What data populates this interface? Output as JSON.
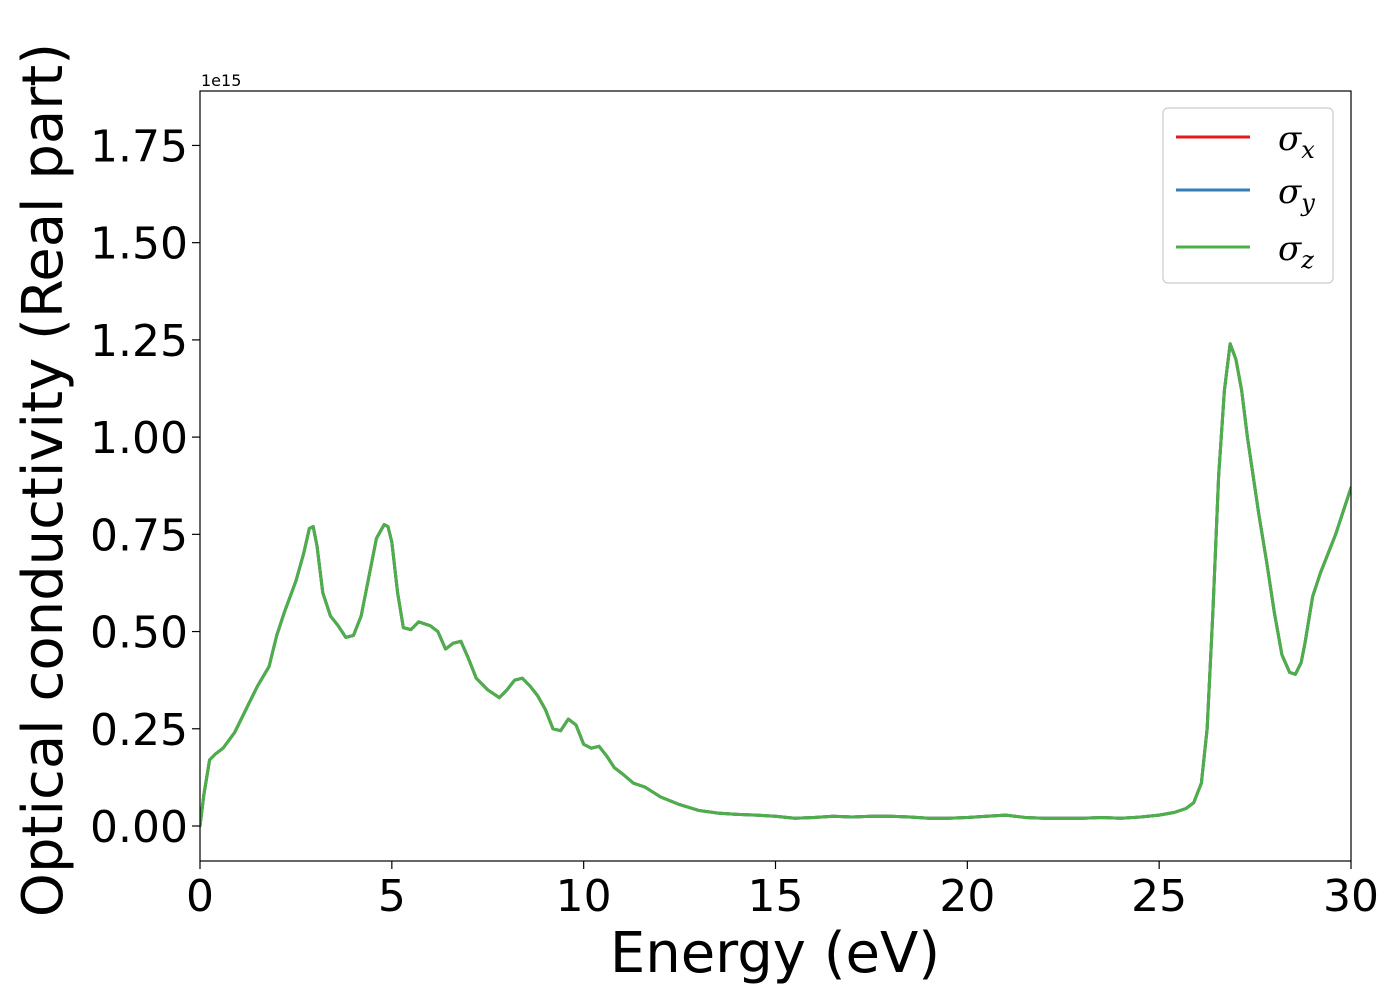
{
  "chart_data": {
    "type": "line",
    "xlabel": "Energy (eV)",
    "ylabel": "Optical conductivity (Real part)",
    "y_offset_label": "1e15",
    "xlim": [
      0,
      30
    ],
    "ylim": [
      -0.09,
      1.89
    ],
    "x_ticks": [
      0,
      5,
      10,
      15,
      20,
      25,
      30
    ],
    "y_ticks": [
      0.0,
      0.25,
      0.5,
      0.75,
      1.0,
      1.25,
      1.5,
      1.75
    ],
    "grid": false,
    "legend_position": "top-right",
    "colors": {
      "sigma_x": "#e41a1c",
      "sigma_y": "#377eb8",
      "sigma_z": "#4daf4a"
    },
    "series_order": [
      "sigma_x",
      "sigma_y",
      "sigma_z"
    ],
    "legend": {
      "sigma_x": {
        "base": "σ",
        "sub": "x"
      },
      "sigma_y": {
        "base": "σ",
        "sub": "y"
      },
      "sigma_z": {
        "base": "σ",
        "sub": "z"
      }
    },
    "series": [
      {
        "name": "σx",
        "key": "sigma_x",
        "x": [
          0,
          0.1,
          0.25,
          0.4,
          0.6,
          0.9,
          1.2,
          1.5,
          1.8,
          2.0,
          2.2,
          2.5,
          2.7,
          2.85,
          2.95,
          3.05,
          3.2,
          3.4,
          3.6,
          3.8,
          4.0,
          4.2,
          4.4,
          4.6,
          4.8,
          4.9,
          5.0,
          5.15,
          5.3,
          5.5,
          5.7,
          5.85,
          6.0,
          6.2,
          6.4,
          6.6,
          6.8,
          7.0,
          7.2,
          7.5,
          7.8,
          8.0,
          8.2,
          8.4,
          8.6,
          8.8,
          9.0,
          9.2,
          9.4,
          9.6,
          9.8,
          10.0,
          10.2,
          10.4,
          10.6,
          10.8,
          11.0,
          11.3,
          11.6,
          12.0,
          12.5,
          13.0,
          13.5,
          14.0,
          14.5,
          15.0,
          15.5,
          16.0,
          16.5,
          17.0,
          17.5,
          18.0,
          18.5,
          19.0,
          19.5,
          20.0,
          20.5,
          21.0,
          21.5,
          22.0,
          22.5,
          23.0,
          23.5,
          24.0,
          24.5,
          25.0,
          25.4,
          25.7,
          25.9,
          26.1,
          26.25,
          26.4,
          26.55,
          26.7,
          26.85,
          27.0,
          27.15,
          27.3,
          27.45,
          27.6,
          27.8,
          28.0,
          28.2,
          28.4,
          28.55,
          28.7,
          28.8,
          28.9,
          29.0,
          29.2,
          29.4,
          29.6,
          29.8,
          30.0
        ],
        "values": [
          0.0,
          0.08,
          0.17,
          0.185,
          0.2,
          0.24,
          0.3,
          0.36,
          0.41,
          0.49,
          0.55,
          0.63,
          0.7,
          0.765,
          0.77,
          0.72,
          0.6,
          0.54,
          0.515,
          0.485,
          0.49,
          0.54,
          0.64,
          0.74,
          0.775,
          0.77,
          0.73,
          0.6,
          0.51,
          0.505,
          0.525,
          0.52,
          0.515,
          0.5,
          0.455,
          0.47,
          0.475,
          0.43,
          0.38,
          0.35,
          0.33,
          0.35,
          0.375,
          0.38,
          0.36,
          0.335,
          0.3,
          0.25,
          0.245,
          0.275,
          0.26,
          0.21,
          0.2,
          0.205,
          0.18,
          0.15,
          0.135,
          0.11,
          0.1,
          0.075,
          0.055,
          0.04,
          0.033,
          0.03,
          0.028,
          0.025,
          0.02,
          0.022,
          0.025,
          0.023,
          0.025,
          0.025,
          0.023,
          0.02,
          0.02,
          0.022,
          0.025,
          0.028,
          0.022,
          0.02,
          0.02,
          0.02,
          0.022,
          0.02,
          0.023,
          0.028,
          0.035,
          0.045,
          0.06,
          0.11,
          0.25,
          0.55,
          0.9,
          1.12,
          1.24,
          1.2,
          1.12,
          1.0,
          0.9,
          0.8,
          0.68,
          0.55,
          0.44,
          0.395,
          0.39,
          0.42,
          0.47,
          0.53,
          0.59,
          0.65,
          0.7,
          0.75,
          0.81,
          0.87
        ]
      },
      {
        "name": "σy",
        "key": "sigma_y",
        "x": [
          0,
          0.1,
          0.25,
          0.4,
          0.6,
          0.9,
          1.2,
          1.5,
          1.8,
          2.0,
          2.2,
          2.5,
          2.7,
          2.85,
          2.95,
          3.05,
          3.2,
          3.4,
          3.6,
          3.8,
          4.0,
          4.2,
          4.4,
          4.6,
          4.8,
          4.9,
          5.0,
          5.15,
          5.3,
          5.5,
          5.7,
          5.85,
          6.0,
          6.2,
          6.4,
          6.6,
          6.8,
          7.0,
          7.2,
          7.5,
          7.8,
          8.0,
          8.2,
          8.4,
          8.6,
          8.8,
          9.0,
          9.2,
          9.4,
          9.6,
          9.8,
          10.0,
          10.2,
          10.4,
          10.6,
          10.8,
          11.0,
          11.3,
          11.6,
          12.0,
          12.5,
          13.0,
          13.5,
          14.0,
          14.5,
          15.0,
          15.5,
          16.0,
          16.5,
          17.0,
          17.5,
          18.0,
          18.5,
          19.0,
          19.5,
          20.0,
          20.5,
          21.0,
          21.5,
          22.0,
          22.5,
          23.0,
          23.5,
          24.0,
          24.5,
          25.0,
          25.4,
          25.7,
          25.9,
          26.1,
          26.25,
          26.4,
          26.55,
          26.7,
          26.85,
          27.0,
          27.15,
          27.3,
          27.45,
          27.6,
          27.8,
          28.0,
          28.2,
          28.4,
          28.55,
          28.7,
          28.8,
          28.9,
          29.0,
          29.2,
          29.4,
          29.6,
          29.8,
          30.0
        ],
        "values": [
          0.0,
          0.08,
          0.17,
          0.185,
          0.2,
          0.24,
          0.3,
          0.36,
          0.41,
          0.49,
          0.55,
          0.63,
          0.7,
          0.765,
          0.77,
          0.72,
          0.6,
          0.54,
          0.515,
          0.485,
          0.49,
          0.54,
          0.64,
          0.74,
          0.775,
          0.77,
          0.73,
          0.6,
          0.51,
          0.505,
          0.525,
          0.52,
          0.515,
          0.5,
          0.455,
          0.47,
          0.475,
          0.43,
          0.38,
          0.35,
          0.33,
          0.35,
          0.375,
          0.38,
          0.36,
          0.335,
          0.3,
          0.25,
          0.245,
          0.275,
          0.26,
          0.21,
          0.2,
          0.205,
          0.18,
          0.15,
          0.135,
          0.11,
          0.1,
          0.075,
          0.055,
          0.04,
          0.033,
          0.03,
          0.028,
          0.025,
          0.02,
          0.022,
          0.025,
          0.023,
          0.025,
          0.025,
          0.023,
          0.02,
          0.02,
          0.022,
          0.025,
          0.028,
          0.022,
          0.02,
          0.02,
          0.02,
          0.022,
          0.02,
          0.023,
          0.028,
          0.035,
          0.045,
          0.06,
          0.11,
          0.25,
          0.55,
          0.9,
          1.12,
          1.24,
          1.2,
          1.12,
          1.0,
          0.9,
          0.8,
          0.68,
          0.55,
          0.44,
          0.395,
          0.39,
          0.42,
          0.47,
          0.53,
          0.59,
          0.65,
          0.7,
          0.75,
          0.81,
          0.87
        ]
      },
      {
        "name": "σz",
        "key": "sigma_z",
        "x": [
          0,
          0.1,
          0.25,
          0.4,
          0.6,
          0.9,
          1.2,
          1.5,
          1.8,
          2.0,
          2.2,
          2.5,
          2.7,
          2.85,
          2.95,
          3.05,
          3.2,
          3.4,
          3.6,
          3.8,
          4.0,
          4.2,
          4.4,
          4.6,
          4.8,
          4.9,
          5.0,
          5.15,
          5.3,
          5.5,
          5.7,
          5.85,
          6.0,
          6.2,
          6.4,
          6.6,
          6.8,
          7.0,
          7.2,
          7.5,
          7.8,
          8.0,
          8.2,
          8.4,
          8.6,
          8.8,
          9.0,
          9.2,
          9.4,
          9.6,
          9.8,
          10.0,
          10.2,
          10.4,
          10.6,
          10.8,
          11.0,
          11.3,
          11.6,
          12.0,
          12.5,
          13.0,
          13.5,
          14.0,
          14.5,
          15.0,
          15.5,
          16.0,
          16.5,
          17.0,
          17.5,
          18.0,
          18.5,
          19.0,
          19.5,
          20.0,
          20.5,
          21.0,
          21.5,
          22.0,
          22.5,
          23.0,
          23.5,
          24.0,
          24.5,
          25.0,
          25.4,
          25.7,
          25.9,
          26.1,
          26.25,
          26.4,
          26.55,
          26.7,
          26.85,
          27.0,
          27.15,
          27.3,
          27.45,
          27.6,
          27.8,
          28.0,
          28.2,
          28.4,
          28.55,
          28.7,
          28.8,
          28.9,
          29.0,
          29.2,
          29.4,
          29.6,
          29.8,
          30.0
        ],
        "values": [
          0.0,
          0.08,
          0.17,
          0.185,
          0.2,
          0.24,
          0.3,
          0.36,
          0.41,
          0.49,
          0.55,
          0.63,
          0.7,
          0.765,
          0.77,
          0.72,
          0.6,
          0.54,
          0.515,
          0.485,
          0.49,
          0.54,
          0.64,
          0.74,
          0.775,
          0.77,
          0.73,
          0.6,
          0.51,
          0.505,
          0.525,
          0.52,
          0.515,
          0.5,
          0.455,
          0.47,
          0.475,
          0.43,
          0.38,
          0.35,
          0.33,
          0.35,
          0.375,
          0.38,
          0.36,
          0.335,
          0.3,
          0.25,
          0.245,
          0.275,
          0.26,
          0.21,
          0.2,
          0.205,
          0.18,
          0.15,
          0.135,
          0.11,
          0.1,
          0.075,
          0.055,
          0.04,
          0.033,
          0.03,
          0.028,
          0.025,
          0.02,
          0.022,
          0.025,
          0.023,
          0.025,
          0.025,
          0.023,
          0.02,
          0.02,
          0.022,
          0.025,
          0.028,
          0.022,
          0.02,
          0.02,
          0.02,
          0.022,
          0.02,
          0.023,
          0.028,
          0.035,
          0.045,
          0.06,
          0.11,
          0.25,
          0.55,
          0.9,
          1.12,
          1.24,
          1.2,
          1.12,
          1.0,
          0.9,
          0.8,
          0.68,
          0.55,
          0.44,
          0.395,
          0.39,
          0.42,
          0.47,
          0.53,
          0.59,
          0.65,
          0.7,
          0.75,
          0.81,
          0.87
        ]
      }
    ]
  }
}
